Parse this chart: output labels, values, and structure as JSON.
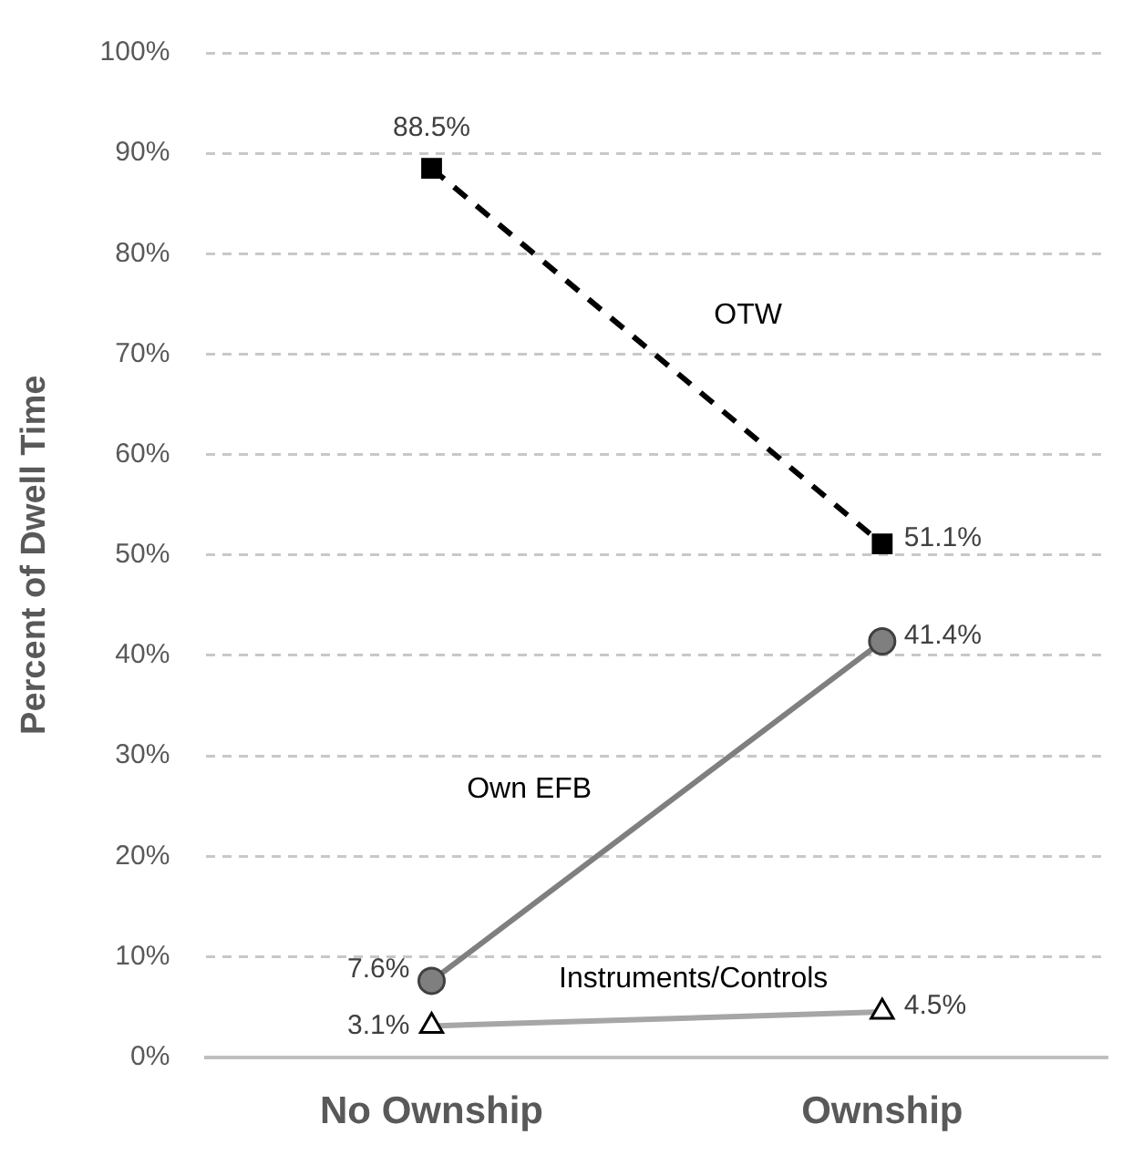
{
  "chart_data": {
    "type": "line",
    "ylabel": "Percent of Dwell Time",
    "categories": [
      "No Ownship",
      "Ownship"
    ],
    "series": [
      {
        "name": "OTW",
        "color": "#000000",
        "values": [
          88.5,
          51.1
        ],
        "value_labels": [
          "88.5%",
          "51.1%"
        ],
        "marker": "square",
        "line_style": "dashed"
      },
      {
        "name": "Own EFB",
        "color": "#7f7f7f",
        "values": [
          7.6,
          41.4
        ],
        "value_labels": [
          "7.6%",
          "41.4%"
        ],
        "marker": "circle",
        "line_style": "solid"
      },
      {
        "name": "Instruments/Controls",
        "color": "#a6a6a6",
        "values": [
          3.1,
          4.5
        ],
        "value_labels": [
          "3.1%",
          "4.5%"
        ],
        "marker": "triangle",
        "line_style": "solid"
      }
    ],
    "ylim": [
      0,
      100
    ],
    "yticks": [
      {
        "value": 0,
        "label": "0%"
      },
      {
        "value": 10,
        "label": "10%"
      },
      {
        "value": 20,
        "label": "20%"
      },
      {
        "value": 30,
        "label": "30%"
      },
      {
        "value": 40,
        "label": "40%"
      },
      {
        "value": 50,
        "label": "50%"
      },
      {
        "value": 60,
        "label": "60%"
      },
      {
        "value": 70,
        "label": "70%"
      },
      {
        "value": 80,
        "label": "80%"
      },
      {
        "value": 90,
        "label": "90%"
      },
      {
        "value": 100,
        "label": "100%"
      }
    ],
    "grid": "y",
    "legend": false
  }
}
